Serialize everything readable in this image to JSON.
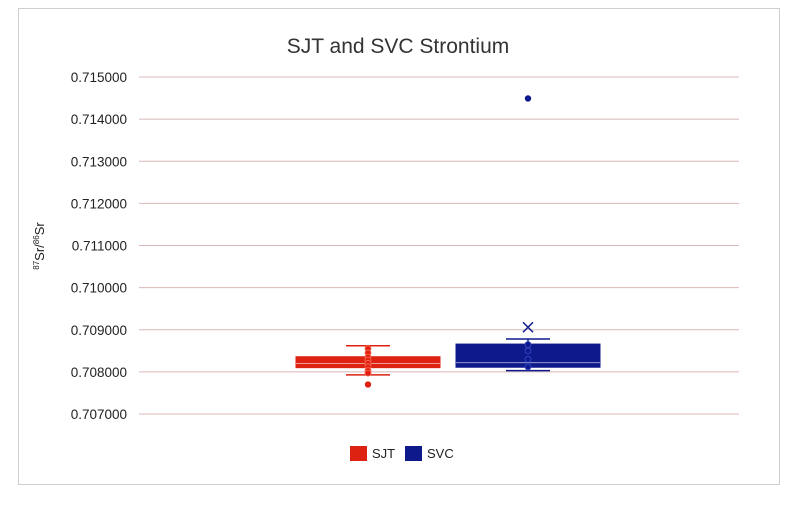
{
  "chart_data": {
    "type": "box",
    "title": "SJT and SVC Strontium",
    "ylabel": {
      "sup1": "87",
      "base1": "Sr/",
      "sup2": "86",
      "base2": "Sr"
    },
    "xlabel": "",
    "ylim": [
      0.707,
      0.715
    ],
    "yticks": [
      "0.715000",
      "0.714000",
      "0.713000",
      "0.712000",
      "0.711000",
      "0.710000",
      "0.709000",
      "0.708000",
      "0.707000"
    ],
    "ytick_values": [
      0.715,
      0.714,
      0.713,
      0.712,
      0.711,
      0.71,
      0.709,
      0.708,
      0.707
    ],
    "grid": true,
    "legend_position": "bottom",
    "series": [
      {
        "name": "SJT",
        "color": "#dd2211",
        "whisker_low": 0.70793,
        "q1": 0.7081,
        "median": 0.7082,
        "q3": 0.70836,
        "whisker_high": 0.70862,
        "mean": 0.70823,
        "points": [
          0.70855,
          0.70845,
          0.70835,
          0.70828,
          0.7082,
          0.70812,
          0.70803,
          0.70797
        ],
        "outliers": [
          0.7077
        ]
      },
      {
        "name": "SVC",
        "color": "#0e1a8c",
        "whisker_low": 0.70803,
        "q1": 0.70811,
        "median": 0.70822,
        "q3": 0.70866,
        "whisker_high": 0.70878,
        "mean": 0.70906,
        "points": [
          0.70812,
          0.7083,
          0.7085,
          0.70865
        ],
        "outliers": [
          0.71449
        ]
      }
    ]
  }
}
